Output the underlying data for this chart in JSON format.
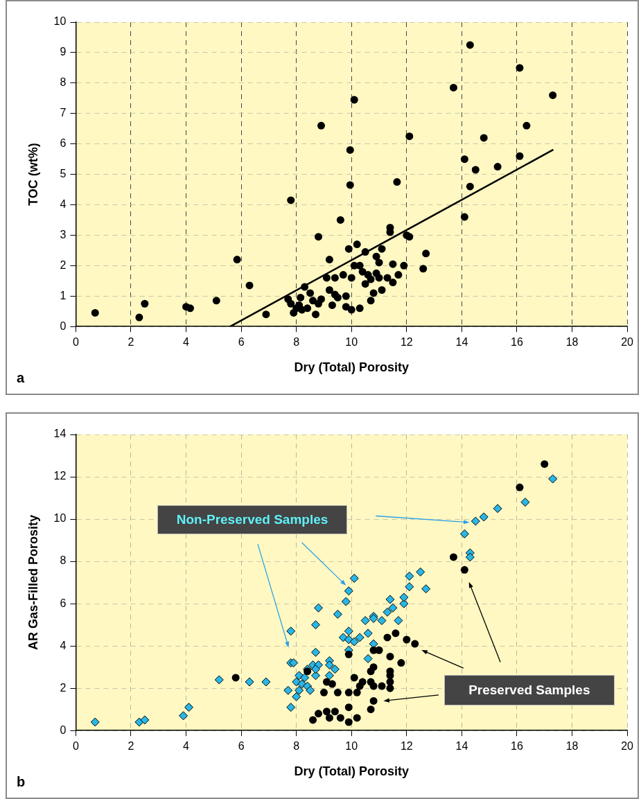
{
  "chart_data": [
    {
      "type": "scatter",
      "xlabel": "Dry (Total) Porosity",
      "ylabel": "TOC (wt%)",
      "annotations": [
        "a"
      ],
      "xlim": [
        0,
        20
      ],
      "xticks": [
        0,
        2,
        4,
        6,
        8,
        10,
        12,
        14,
        16,
        18,
        20
      ],
      "ylim": [
        0,
        10
      ],
      "yticks": [
        0,
        1,
        2,
        3,
        4,
        5,
        6,
        7,
        8,
        9,
        10
      ],
      "grid": true,
      "series": [
        {
          "marker": "circle",
          "color": "#000000",
          "x": [
            0.7,
            2.3,
            2.5,
            4.0,
            4.15,
            5.1,
            5.85,
            6.3,
            6.9,
            7.8,
            7.7,
            7.9,
            7.8,
            8.0,
            8.1,
            8.2,
            8.3,
            8.15,
            8.4,
            8.5,
            8.6,
            8.7,
            8.8,
            8.8,
            8.9,
            8.9,
            9.1,
            9.2,
            9.2,
            9.3,
            9.4,
            9.4,
            9.5,
            9.6,
            9.7,
            9.8,
            9.8,
            9.9,
            9.95,
            9.95,
            10.0,
            10.1,
            10.0,
            10.1,
            10.2,
            10.3,
            10.3,
            10.4,
            10.5,
            10.5,
            10.6,
            10.7,
            10.7,
            10.8,
            10.9,
            10.9,
            11.0,
            11.0,
            11.1,
            11.1,
            11.3,
            11.4,
            11.4,
            11.5,
            11.5,
            11.65,
            11.7,
            11.9,
            12.0,
            12.1,
            12.1,
            12.6,
            12.7,
            13.7,
            14.1,
            14.1,
            14.3,
            14.3,
            14.5,
            14.8,
            15.3,
            16.1,
            16.1,
            16.35,
            17.3
          ],
          "values": [
            0.45,
            0.3,
            0.75,
            0.65,
            0.6,
            0.85,
            2.2,
            1.35,
            0.4,
            4.15,
            0.9,
            0.45,
            0.75,
            0.6,
            0.7,
            0.55,
            1.3,
            0.95,
            0.6,
            1.1,
            0.85,
            0.4,
            0.75,
            2.95,
            6.6,
            0.9,
            1.6,
            1.2,
            2.2,
            0.7,
            1.05,
            1.6,
            0.95,
            3.5,
            1.7,
            0.65,
            1.0,
            2.55,
            5.8,
            4.65,
            1.6,
            7.45,
            0.55,
            2.0,
            2.7,
            0.6,
            2.0,
            1.8,
            1.4,
            2.45,
            1.7,
            0.85,
            1.55,
            1.1,
            1.75,
            2.3,
            2.1,
            1.6,
            2.55,
            1.2,
            1.6,
            3.1,
            3.25,
            2.05,
            1.45,
            4.75,
            1.7,
            2.0,
            3.0,
            2.95,
            6.25,
            1.9,
            2.4,
            7.85,
            3.6,
            5.5,
            9.25,
            4.6,
            5.15,
            6.2,
            5.25,
            8.5,
            5.6,
            6.6,
            7.6
          ]
        },
        {
          "type": "line",
          "color": "#000000",
          "line_style": "solid",
          "x": [
            5.6,
            17.3
          ],
          "values": [
            0,
            5.8
          ]
        }
      ]
    },
    {
      "type": "scatter",
      "xlabel": "Dry (Total) Porosity",
      "ylabel": "AR Gas-Filled Porosity",
      "annotations": [
        "b",
        "Non-Preserved Samples",
        "Preserved Samples"
      ],
      "xlim": [
        0,
        20
      ],
      "xticks": [
        0,
        2,
        4,
        6,
        8,
        10,
        12,
        14,
        16,
        18,
        20
      ],
      "ylim": [
        0,
        14
      ],
      "yticks": [
        0,
        2,
        4,
        6,
        8,
        10,
        12,
        14
      ],
      "grid": true,
      "series": [
        {
          "marker": "diamond",
          "color": "#29b6e6",
          "x": [
            0.7,
            2.3,
            2.5,
            3.9,
            4.1,
            5.2,
            6.3,
            6.9,
            7.7,
            7.8,
            7.8,
            7.9,
            8.0,
            7.8,
            8.0,
            8.1,
            8.1,
            8.2,
            8.3,
            8.4,
            8.4,
            8.5,
            8.6,
            8.7,
            8.7,
            8.8,
            8.8,
            8.7,
            8.7,
            9.2,
            9.2,
            9.2,
            9.4,
            9.5,
            9.8,
            9.9,
            10.1,
            9.9,
            9.7,
            9.9,
            9.9,
            10.1,
            10.3,
            10.5,
            10.6,
            10.8,
            10.6,
            10.8,
            10.8,
            11.1,
            11.3,
            11.4,
            11.5,
            11.7,
            11.9,
            11.9,
            12.1,
            12.1,
            12.5,
            12.7,
            14.1,
            14.3,
            14.3,
            14.5,
            14.8,
            15.3,
            16.3,
            17.3
          ],
          "values": [
            0.4,
            0.4,
            0.5,
            0.7,
            1.1,
            2.4,
            2.3,
            2.3,
            1.9,
            4.7,
            3.2,
            3.2,
            1.6,
            1.1,
            2.3,
            2.6,
            1.9,
            2.2,
            2.5,
            2.9,
            2.1,
            1.9,
            3.1,
            3.7,
            5.0,
            5.8,
            3.1,
            2.6,
            2.9,
            3.3,
            3.1,
            2.6,
            2.9,
            5.5,
            6.1,
            6.6,
            7.2,
            4.7,
            4.4,
            4.3,
            3.8,
            4.2,
            4.4,
            5.2,
            4.6,
            4.1,
            3.4,
            5.4,
            5.3,
            5.2,
            5.6,
            6.2,
            5.8,
            5.2,
            6.0,
            6.3,
            6.8,
            7.3,
            7.5,
            6.7,
            9.3,
            8.4,
            8.2,
            9.9,
            10.1,
            10.5,
            10.8,
            11.9
          ]
        },
        {
          "marker": "circle",
          "color": "#000000",
          "x": [
            5.8,
            8.4,
            9.1,
            9.3,
            9.0,
            9.5,
            9.9,
            10.1,
            9.9,
            9.9,
            8.6,
            8.8,
            9.1,
            9.2,
            9.4,
            9.6,
            9.9,
            10.2,
            17.0,
            16.1,
            13.7,
            14.1,
            11.6,
            11.3,
            12.0,
            12.3,
            10.8,
            11.0,
            11.4,
            11.8,
            10.8,
            10.7,
            11.4,
            11.4,
            11.4,
            11.1,
            11.4,
            10.7,
            10.8,
            10.4,
            10.3,
            10.2,
            10.8,
            10.7
          ],
          "values": [
            2.5,
            2.8,
            2.3,
            2.2,
            1.8,
            1.8,
            1.8,
            2.5,
            3.6,
            1.1,
            0.5,
            0.8,
            0.9,
            0.6,
            0.9,
            0.6,
            0.4,
            0.6,
            12.6,
            11.5,
            8.2,
            7.6,
            4.6,
            4.4,
            4.3,
            4.1,
            3.8,
            3.8,
            3.5,
            3.2,
            3.0,
            2.8,
            2.8,
            2.6,
            2.3,
            2.1,
            2.0,
            2.3,
            2.1,
            2.3,
            2.1,
            1.8,
            1.4,
            1.0
          ]
        }
      ]
    }
  ]
}
